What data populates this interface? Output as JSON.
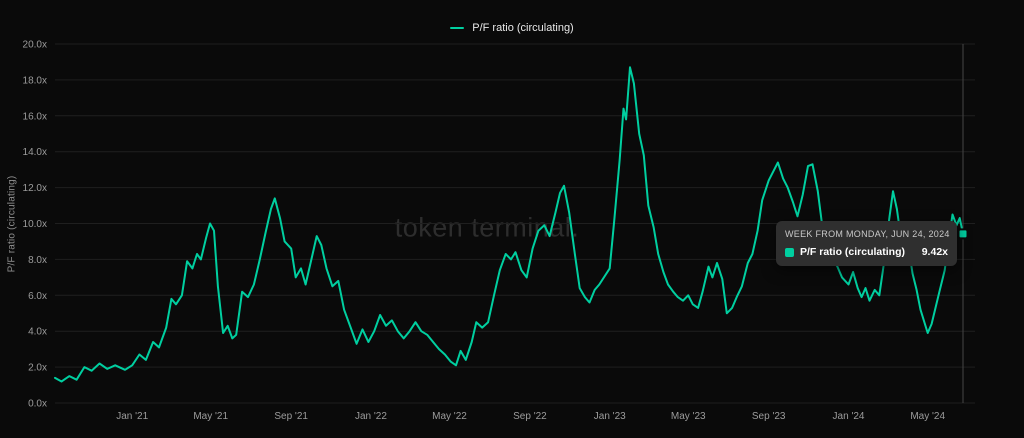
{
  "legend": {
    "label": "P/F ratio (circulating)"
  },
  "watermark": "token terminal.",
  "y_axis": {
    "title": "P/F ratio (circulating)",
    "tick_labels": [
      "0.0x",
      "2.0x",
      "4.0x",
      "6.0x",
      "8.0x",
      "10.0x",
      "12.0x",
      "14.0x",
      "16.0x",
      "18.0x",
      "20.0x"
    ],
    "min": 0,
    "max": 20,
    "step": 2
  },
  "x_axis": {
    "tick_labels": [
      "Jan '21",
      "May '21",
      "Sep '21",
      "Jan '22",
      "May '22",
      "Sep '22",
      "Jan '23",
      "May '23",
      "Sep '23",
      "Jan '24",
      "May '24"
    ],
    "tick_dates": [
      "2021-01-01",
      "2021-05-01",
      "2021-09-01",
      "2022-01-01",
      "2022-05-01",
      "2022-09-01",
      "2023-01-01",
      "2023-05-01",
      "2023-09-01",
      "2024-01-01",
      "2024-05-01"
    ]
  },
  "tooltip": {
    "header": "WEEK FROM MONDAY, JUN 24, 2024",
    "series": "P/F ratio (circulating)",
    "value": "9.42x"
  },
  "colors": {
    "accent": "#00cfa0",
    "background": "#0a0a0a",
    "grid": "#1f1f1f",
    "muted_text": "#9c9c9c",
    "tooltip_bg": "#2f2f2f",
    "crosshair": "#454545"
  },
  "chart_data": {
    "type": "line",
    "title": "",
    "xlabel": "",
    "ylabel": "P/F ratio (circulating)",
    "ylim": [
      0,
      20
    ],
    "x_range": [
      "2020-09-05",
      "2024-06-24"
    ],
    "grid": "horizontal",
    "legend_position": "top-center",
    "highlight": {
      "date": "2024-06-24",
      "value": 9.42,
      "label": "9.42x"
    },
    "series": [
      {
        "name": "P/F ratio (circulating)",
        "color": "#00cfa0",
        "points": [
          [
            "2020-09-05",
            1.4
          ],
          [
            "2020-09-15",
            1.2
          ],
          [
            "2020-09-27",
            1.5
          ],
          [
            "2020-10-08",
            1.3
          ],
          [
            "2020-10-20",
            2.0
          ],
          [
            "2020-10-31",
            1.8
          ],
          [
            "2020-11-12",
            2.2
          ],
          [
            "2020-11-24",
            1.9
          ],
          [
            "2020-12-06",
            2.1
          ],
          [
            "2020-12-21",
            1.85
          ],
          [
            "2021-01-01",
            2.1
          ],
          [
            "2021-01-12",
            2.7
          ],
          [
            "2021-01-22",
            2.4
          ],
          [
            "2021-02-02",
            3.4
          ],
          [
            "2021-02-11",
            3.1
          ],
          [
            "2021-02-22",
            4.2
          ],
          [
            "2021-03-02",
            5.8
          ],
          [
            "2021-03-09",
            5.5
          ],
          [
            "2021-03-18",
            6.0
          ],
          [
            "2021-03-26",
            7.9
          ],
          [
            "2021-04-03",
            7.5
          ],
          [
            "2021-04-10",
            8.3
          ],
          [
            "2021-04-16",
            8.0
          ],
          [
            "2021-04-24",
            9.2
          ],
          [
            "2021-04-30",
            10.0
          ],
          [
            "2021-05-06",
            9.6
          ],
          [
            "2021-05-12",
            6.5
          ],
          [
            "2021-05-20",
            3.9
          ],
          [
            "2021-05-27",
            4.3
          ],
          [
            "2021-06-03",
            3.6
          ],
          [
            "2021-06-09",
            3.8
          ],
          [
            "2021-06-18",
            6.2
          ],
          [
            "2021-06-27",
            5.9
          ],
          [
            "2021-07-06",
            6.6
          ],
          [
            "2021-07-15",
            8.0
          ],
          [
            "2021-07-24",
            9.5
          ],
          [
            "2021-08-01",
            10.8
          ],
          [
            "2021-08-07",
            11.4
          ],
          [
            "2021-08-15",
            10.3
          ],
          [
            "2021-08-22",
            9.0
          ],
          [
            "2021-09-01",
            8.6
          ],
          [
            "2021-09-08",
            7.0
          ],
          [
            "2021-09-16",
            7.5
          ],
          [
            "2021-09-23",
            6.6
          ],
          [
            "2021-10-02",
            8.0
          ],
          [
            "2021-10-10",
            9.3
          ],
          [
            "2021-10-17",
            8.8
          ],
          [
            "2021-10-25",
            7.5
          ],
          [
            "2021-11-03",
            6.5
          ],
          [
            "2021-11-12",
            6.8
          ],
          [
            "2021-11-21",
            5.2
          ],
          [
            "2021-12-01",
            4.2
          ],
          [
            "2021-12-10",
            3.3
          ],
          [
            "2021-12-19",
            4.1
          ],
          [
            "2021-12-28",
            3.4
          ],
          [
            "2022-01-06",
            4.0
          ],
          [
            "2022-01-15",
            4.9
          ],
          [
            "2022-01-24",
            4.3
          ],
          [
            "2022-02-02",
            4.6
          ],
          [
            "2022-02-11",
            4.0
          ],
          [
            "2022-02-20",
            3.6
          ],
          [
            "2022-03-01",
            4.0
          ],
          [
            "2022-03-10",
            4.5
          ],
          [
            "2022-03-19",
            4.0
          ],
          [
            "2022-03-28",
            3.8
          ],
          [
            "2022-04-06",
            3.4
          ],
          [
            "2022-04-15",
            3.0
          ],
          [
            "2022-04-24",
            2.7
          ],
          [
            "2022-05-03",
            2.3
          ],
          [
            "2022-05-11",
            2.1
          ],
          [
            "2022-05-18",
            2.9
          ],
          [
            "2022-05-26",
            2.4
          ],
          [
            "2022-06-04",
            3.4
          ],
          [
            "2022-06-11",
            4.5
          ],
          [
            "2022-06-20",
            4.2
          ],
          [
            "2022-06-29",
            4.5
          ],
          [
            "2022-07-08",
            6.0
          ],
          [
            "2022-07-17",
            7.4
          ],
          [
            "2022-07-26",
            8.3
          ],
          [
            "2022-08-03",
            8.0
          ],
          [
            "2022-08-10",
            8.4
          ],
          [
            "2022-08-19",
            7.4
          ],
          [
            "2022-08-27",
            7.0
          ],
          [
            "2022-09-05",
            8.6
          ],
          [
            "2022-09-14",
            9.6
          ],
          [
            "2022-09-23",
            9.9
          ],
          [
            "2022-10-01",
            9.3
          ],
          [
            "2022-10-10",
            10.6
          ],
          [
            "2022-10-17",
            11.7
          ],
          [
            "2022-10-23",
            12.1
          ],
          [
            "2022-10-31",
            10.6
          ],
          [
            "2022-11-09",
            8.2
          ],
          [
            "2022-11-16",
            6.4
          ],
          [
            "2022-11-24",
            5.9
          ],
          [
            "2022-12-01",
            5.6
          ],
          [
            "2022-12-09",
            6.3
          ],
          [
            "2022-12-16",
            6.6
          ],
          [
            "2023-01-01",
            7.5
          ],
          [
            "2023-01-08",
            10.2
          ],
          [
            "2023-01-16",
            13.5
          ],
          [
            "2023-01-22",
            16.4
          ],
          [
            "2023-01-26",
            15.8
          ],
          [
            "2023-02-01",
            18.7
          ],
          [
            "2023-02-07",
            17.8
          ],
          [
            "2023-02-15",
            15.0
          ],
          [
            "2023-02-22",
            13.8
          ],
          [
            "2023-03-01",
            11.0
          ],
          [
            "2023-03-09",
            9.8
          ],
          [
            "2023-03-16",
            8.3
          ],
          [
            "2023-03-24",
            7.3
          ],
          [
            "2023-03-31",
            6.6
          ],
          [
            "2023-04-08",
            6.2
          ],
          [
            "2023-04-15",
            5.9
          ],
          [
            "2023-04-23",
            5.7
          ],
          [
            "2023-05-01",
            6.0
          ],
          [
            "2023-05-08",
            5.5
          ],
          [
            "2023-05-16",
            5.3
          ],
          [
            "2023-05-23",
            6.2
          ],
          [
            "2023-06-01",
            7.6
          ],
          [
            "2023-06-07",
            7.0
          ],
          [
            "2023-06-14",
            7.8
          ],
          [
            "2023-06-22",
            6.9
          ],
          [
            "2023-06-29",
            5.0
          ],
          [
            "2023-07-07",
            5.3
          ],
          [
            "2023-07-14",
            5.9
          ],
          [
            "2023-07-22",
            6.5
          ],
          [
            "2023-07-31",
            7.8
          ],
          [
            "2023-08-07",
            8.3
          ],
          [
            "2023-08-15",
            9.6
          ],
          [
            "2023-08-22",
            11.3
          ],
          [
            "2023-09-01",
            12.4
          ],
          [
            "2023-09-08",
            12.9
          ],
          [
            "2023-09-15",
            13.4
          ],
          [
            "2023-09-23",
            12.5
          ],
          [
            "2023-09-30",
            12.0
          ],
          [
            "2023-10-08",
            11.2
          ],
          [
            "2023-10-15",
            10.4
          ],
          [
            "2023-10-23",
            11.6
          ],
          [
            "2023-10-31",
            13.2
          ],
          [
            "2023-11-07",
            13.3
          ],
          [
            "2023-11-15",
            11.8
          ],
          [
            "2023-11-22",
            9.8
          ],
          [
            "2023-11-30",
            8.7
          ],
          [
            "2023-12-07",
            8.0
          ],
          [
            "2023-12-15",
            7.6
          ],
          [
            "2023-12-22",
            7.0
          ],
          [
            "2024-01-01",
            6.6
          ],
          [
            "2024-01-08",
            7.3
          ],
          [
            "2024-01-15",
            6.4
          ],
          [
            "2024-01-21",
            5.9
          ],
          [
            "2024-01-27",
            6.4
          ],
          [
            "2024-02-02",
            5.7
          ],
          [
            "2024-02-10",
            6.3
          ],
          [
            "2024-02-17",
            6.0
          ],
          [
            "2024-02-25",
            8.0
          ],
          [
            "2024-03-03",
            10.2
          ],
          [
            "2024-03-09",
            11.8
          ],
          [
            "2024-03-15",
            10.8
          ],
          [
            "2024-03-21",
            9.2
          ],
          [
            "2024-03-27",
            8.2
          ],
          [
            "2024-04-02",
            8.6
          ],
          [
            "2024-04-08",
            7.2
          ],
          [
            "2024-04-14",
            6.3
          ],
          [
            "2024-04-20",
            5.2
          ],
          [
            "2024-05-01",
            3.9
          ],
          [
            "2024-05-07",
            4.4
          ],
          [
            "2024-05-13",
            5.3
          ],
          [
            "2024-05-19",
            6.2
          ],
          [
            "2024-05-27",
            7.4
          ],
          [
            "2024-06-02",
            9.0
          ],
          [
            "2024-06-08",
            10.5
          ],
          [
            "2024-06-14",
            9.9
          ],
          [
            "2024-06-19",
            10.3
          ],
          [
            "2024-06-24",
            9.42
          ]
        ]
      }
    ]
  }
}
